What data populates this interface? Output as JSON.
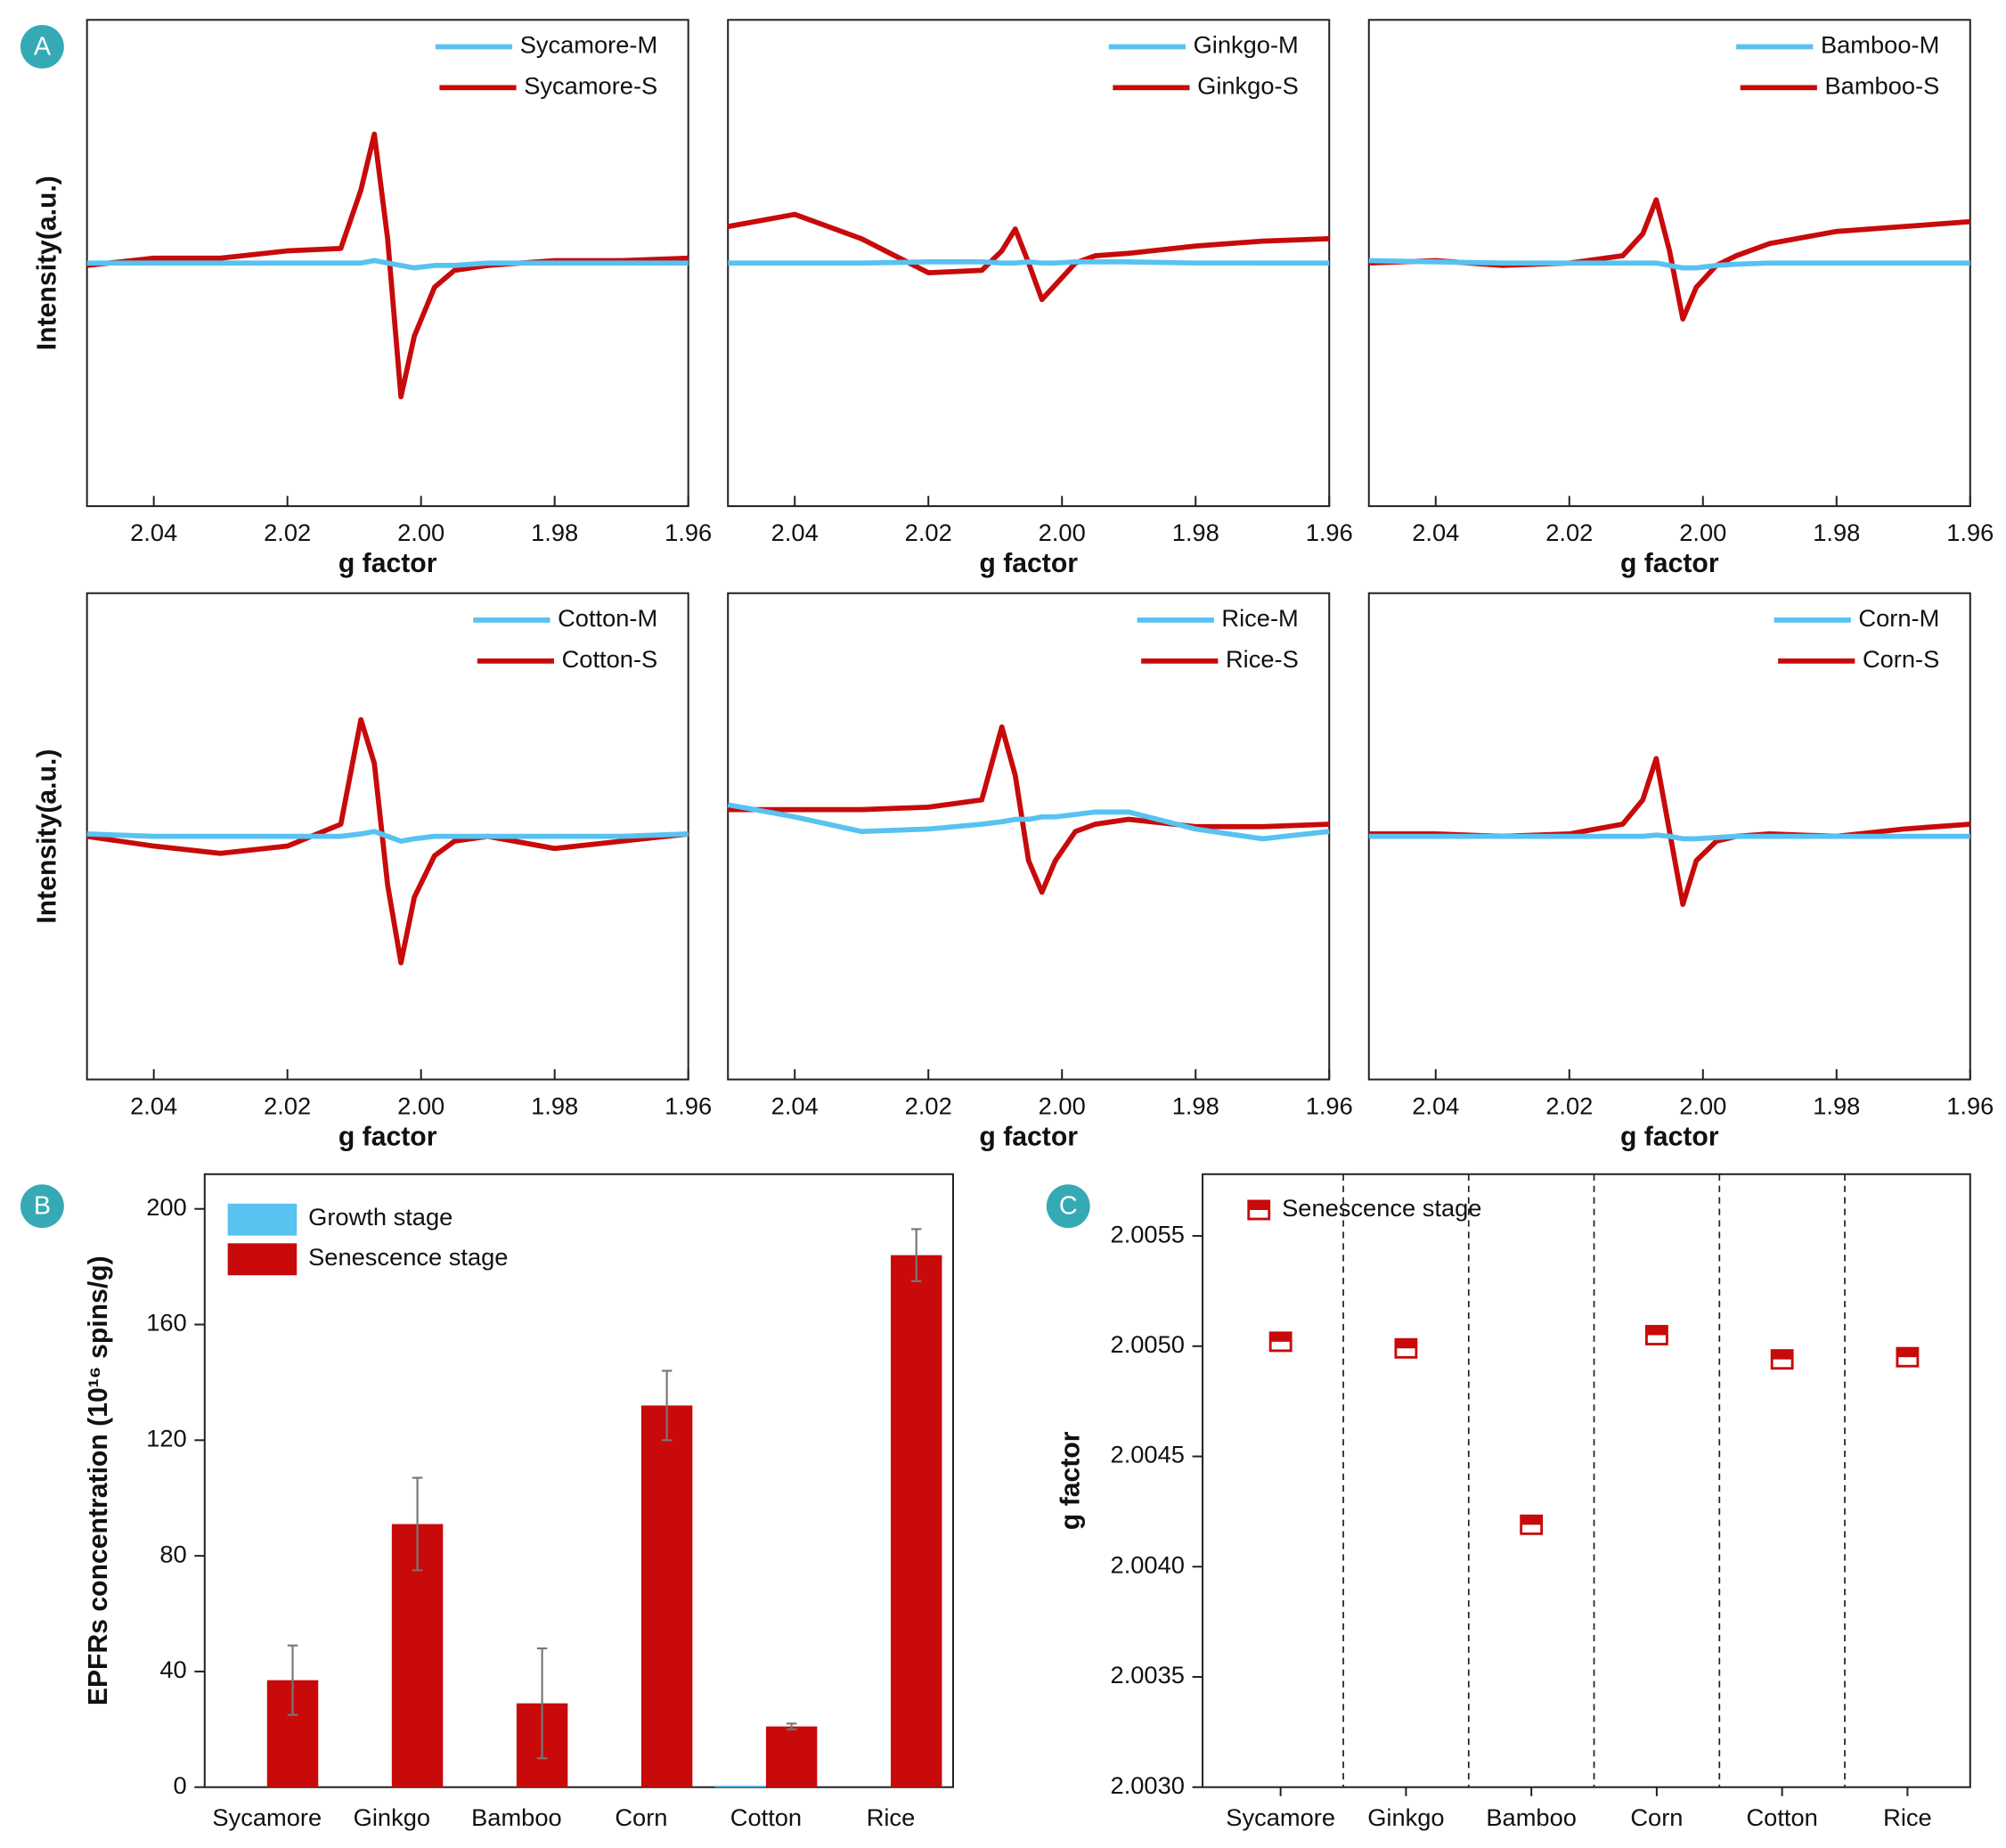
{
  "panel_labels": [
    "A",
    "B",
    "C"
  ],
  "chart_data": [
    {
      "type": "line",
      "xlabel": "g factor",
      "ylabel": "Intensity(a.u.)",
      "legend": "upper right",
      "x": [
        2.05,
        2.04,
        2.03,
        2.02,
        2.012,
        2.009,
        2.007,
        2.005,
        2.003,
        2.001,
        1.998,
        1.995,
        1.99,
        1.98,
        1.97,
        1.96
      ],
      "xlim": [
        2.05,
        1.96
      ],
      "ylim": [
        -1,
        1
      ],
      "xticks": [
        2.04,
        2.02,
        {
          "value": 2,
          "label": "2.00"
        },
        1.98,
        1.96
      ],
      "series": [
        {
          "name": "Sycamore-M",
          "color": "#58c2f0",
          "values": [
            0,
            0,
            0,
            0,
            0,
            0,
            0.01,
            0,
            -0.01,
            -0.02,
            -0.01,
            -0.01,
            0,
            0,
            0,
            0
          ]
        },
        {
          "name": "Sycamore-S",
          "color": "#c80a0a",
          "values": [
            -0.01,
            0.02,
            0.02,
            0.05,
            0.06,
            0.3,
            0.53,
            0.1,
            -0.55,
            -0.3,
            -0.1,
            -0.03,
            -0.01,
            0.01,
            0.01,
            0.02
          ]
        }
      ]
    },
    {
      "type": "line",
      "xlabel": "g factor",
      "legend": "upper right",
      "x": [
        2.05,
        2.04,
        2.03,
        2.02,
        2.012,
        2.009,
        2.007,
        2.005,
        2.003,
        2.001,
        1.998,
        1.995,
        1.99,
        1.98,
        1.97,
        1.96
      ],
      "xlim": [
        2.05,
        1.96
      ],
      "ylim": [
        -1,
        1
      ],
      "xticks": [
        2.04,
        2.02,
        {
          "value": 2,
          "label": "2.00"
        },
        1.98,
        1.96
      ],
      "series": [
        {
          "name": "Ginkgo-M",
          "color": "#58c2f0",
          "values": [
            0,
            0,
            0,
            0.005,
            0.005,
            0,
            0,
            0.005,
            0,
            0,
            0.005,
            0.005,
            0.005,
            0,
            0,
            0
          ]
        },
        {
          "name": "Ginkgo-S",
          "color": "#c80a0a",
          "values": [
            0.15,
            0.2,
            0.1,
            -0.04,
            -0.03,
            0.05,
            0.14,
            0,
            -0.15,
            -0.09,
            0,
            0.03,
            0.04,
            0.07,
            0.09,
            0.1
          ]
        }
      ]
    },
    {
      "type": "line",
      "xlabel": "g factor",
      "legend": "upper right",
      "x": [
        2.05,
        2.04,
        2.03,
        2.02,
        2.012,
        2.009,
        2.007,
        2.005,
        2.003,
        2.001,
        1.998,
        1.995,
        1.99,
        1.98,
        1.97,
        1.96
      ],
      "xlim": [
        2.05,
        1.96
      ],
      "ylim": [
        -1,
        1
      ],
      "xticks": [
        2.04,
        2.02,
        {
          "value": 2,
          "label": "2.00"
        },
        1.98,
        1.96
      ],
      "series": [
        {
          "name": "Bamboo-M",
          "color": "#58c2f0",
          "values": [
            0.01,
            0.005,
            0,
            0,
            0,
            0,
            0,
            -0.01,
            -0.02,
            -0.02,
            -0.01,
            -0.005,
            0,
            0,
            0,
            0
          ]
        },
        {
          "name": "Bamboo-S",
          "color": "#c80a0a",
          "values": [
            0,
            0.01,
            -0.01,
            0,
            0.03,
            0.12,
            0.26,
            0.05,
            -0.23,
            -0.1,
            -0.01,
            0.03,
            0.08,
            0.13,
            0.15,
            0.17
          ]
        }
      ]
    },
    {
      "type": "line",
      "xlabel": "g factor",
      "ylabel": "Intensity(a.u.)",
      "legend": "upper right",
      "x": [
        2.05,
        2.04,
        2.03,
        2.02,
        2.012,
        2.009,
        2.007,
        2.005,
        2.003,
        2.001,
        1.998,
        1.995,
        1.99,
        1.98,
        1.97,
        1.96
      ],
      "xlim": [
        2.05,
        1.96
      ],
      "ylim": [
        -1,
        1
      ],
      "xticks": [
        2.04,
        2.02,
        {
          "value": 2,
          "label": "2.00"
        },
        1.98,
        1.96
      ],
      "series": [
        {
          "name": "Cotton-M",
          "color": "#58c2f0",
          "values": [
            0.01,
            0,
            0,
            0,
            0,
            0.01,
            0.02,
            0,
            -0.02,
            -0.01,
            0,
            0,
            0,
            0,
            0,
            0.01
          ]
        },
        {
          "name": "Cotton-S",
          "color": "#c80a0a",
          "values": [
            0,
            -0.04,
            -0.07,
            -0.04,
            0.05,
            0.48,
            0.3,
            -0.2,
            -0.52,
            -0.25,
            -0.08,
            -0.02,
            0,
            -0.05,
            -0.02,
            0.01
          ]
        }
      ]
    },
    {
      "type": "line",
      "xlabel": "g factor",
      "legend": "upper right",
      "x": [
        2.05,
        2.04,
        2.03,
        2.02,
        2.012,
        2.009,
        2.007,
        2.005,
        2.003,
        2.001,
        1.998,
        1.995,
        1.99,
        1.98,
        1.97,
        1.96
      ],
      "xlim": [
        2.05,
        1.96
      ],
      "ylim": [
        -1,
        1
      ],
      "xticks": [
        2.04,
        2.02,
        {
          "value": 2,
          "label": "2.00"
        },
        1.98,
        1.96
      ],
      "series": [
        {
          "name": "Rice-M",
          "color": "#58c2f0",
          "values": [
            0.13,
            0.08,
            0.02,
            0.03,
            0.05,
            0.06,
            0.07,
            0.07,
            0.08,
            0.08,
            0.09,
            0.1,
            0.1,
            0.03,
            -0.01,
            0.02
          ]
        },
        {
          "name": "Rice-S",
          "color": "#c80a0a",
          "values": [
            0.11,
            0.11,
            0.11,
            0.12,
            0.15,
            0.45,
            0.25,
            -0.1,
            -0.23,
            -0.1,
            0.02,
            0.05,
            0.07,
            0.04,
            0.04,
            0.05
          ]
        }
      ]
    },
    {
      "type": "line",
      "xlabel": "g factor",
      "legend": "upper right",
      "x": [
        2.05,
        2.04,
        2.03,
        2.02,
        2.012,
        2.009,
        2.007,
        2.005,
        2.003,
        2.001,
        1.998,
        1.995,
        1.99,
        1.98,
        1.97,
        1.96
      ],
      "xlim": [
        2.05,
        1.96
      ],
      "ylim": [
        -1,
        1
      ],
      "xticks": [
        2.04,
        2.02,
        {
          "value": 2,
          "label": "2.00"
        },
        1.98,
        1.96
      ],
      "series": [
        {
          "name": "Corn-M",
          "color": "#58c2f0",
          "values": [
            0,
            0,
            0,
            0,
            0,
            0,
            0.005,
            0,
            -0.01,
            -0.01,
            -0.005,
            0,
            0,
            0,
            0,
            0
          ]
        },
        {
          "name": "Corn-S",
          "color": "#c80a0a",
          "values": [
            0.01,
            0.01,
            0,
            0.01,
            0.05,
            0.15,
            0.32,
            0.02,
            -0.28,
            -0.1,
            -0.02,
            0,
            0.01,
            0,
            0.03,
            0.05
          ]
        }
      ]
    },
    {
      "type": "bar",
      "ylabel": "EPFRs concentration (10¹⁶ spins/g)",
      "legend": "upper left",
      "categories": [
        "Sycamore",
        "Ginkgo",
        "Bamboo",
        "Corn",
        "Cotton",
        "Rice"
      ],
      "ylim": [
        0,
        212
      ],
      "yticks": [
        0,
        40,
        80,
        120,
        160,
        200
      ],
      "series": [
        {
          "name": "Growth stage",
          "color": "#58c2f0",
          "values": [
            0,
            0,
            0,
            0,
            0.5,
            0
          ]
        },
        {
          "name": "Senescence stage",
          "color": "#c80a0a",
          "values": [
            37,
            91,
            29,
            132,
            21,
            184
          ],
          "errors": [
            12,
            16,
            19,
            12,
            1,
            9
          ]
        }
      ]
    },
    {
      "type": "scatter",
      "ylabel": "g factor",
      "legend": "upper left",
      "categories": [
        "Sycamore",
        "Ginkgo",
        "Bamboo",
        "Corn",
        "Cotton",
        "Rice"
      ],
      "ylim": [
        2.003,
        2.00578
      ],
      "yticks": [
        {
          "value": 2.003,
          "label": "2.0030"
        },
        {
          "value": 2.0035,
          "label": "2.0035"
        },
        {
          "value": 2.004,
          "label": "2.0040"
        },
        {
          "value": 2.0045,
          "label": "2.0045"
        },
        {
          "value": 2.005,
          "label": "2.0050"
        },
        {
          "value": 2.0055,
          "label": "2.0055"
        }
      ],
      "series": [
        {
          "name": "Senescence stage",
          "color": "#c80a0a",
          "values": [
            2.00502,
            2.00499,
            2.00419,
            2.00505,
            2.00494,
            2.00495
          ]
        }
      ]
    }
  ]
}
